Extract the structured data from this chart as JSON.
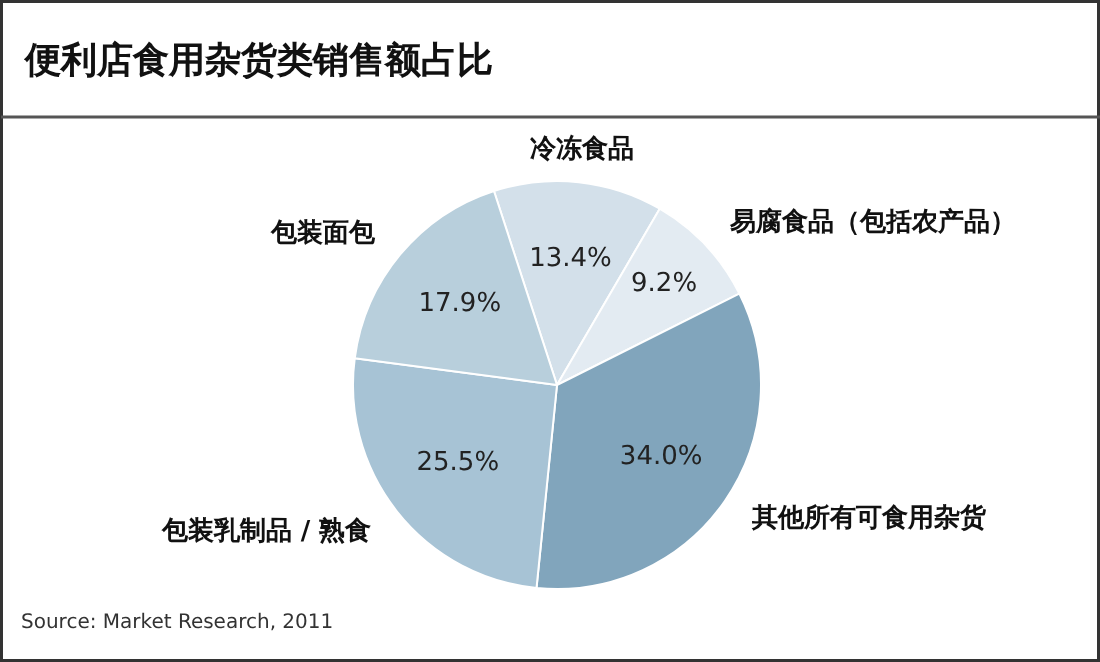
{
  "chart_data": {
    "type": "pie",
    "title": "便利店食用杂货类销售额占比",
    "categories": [
      "冷冻食品",
      "易腐食品（包括农产品）",
      "其他所有可食用杂货",
      "包装乳制品 / 熟食",
      "包装面包"
    ],
    "values": [
      13.4,
      9.2,
      34.0,
      25.5,
      17.9
    ],
    "value_labels": [
      "13.4%",
      "9.2%",
      "34.0%",
      "25.5%",
      "17.9%"
    ],
    "colors": [
      "#d3e0ea",
      "#e3ebf2",
      "#81a5bc",
      "#a7c3d5",
      "#b8cfdc"
    ],
    "annotations": [
      "Source: Market Research, 2011"
    ]
  }
}
